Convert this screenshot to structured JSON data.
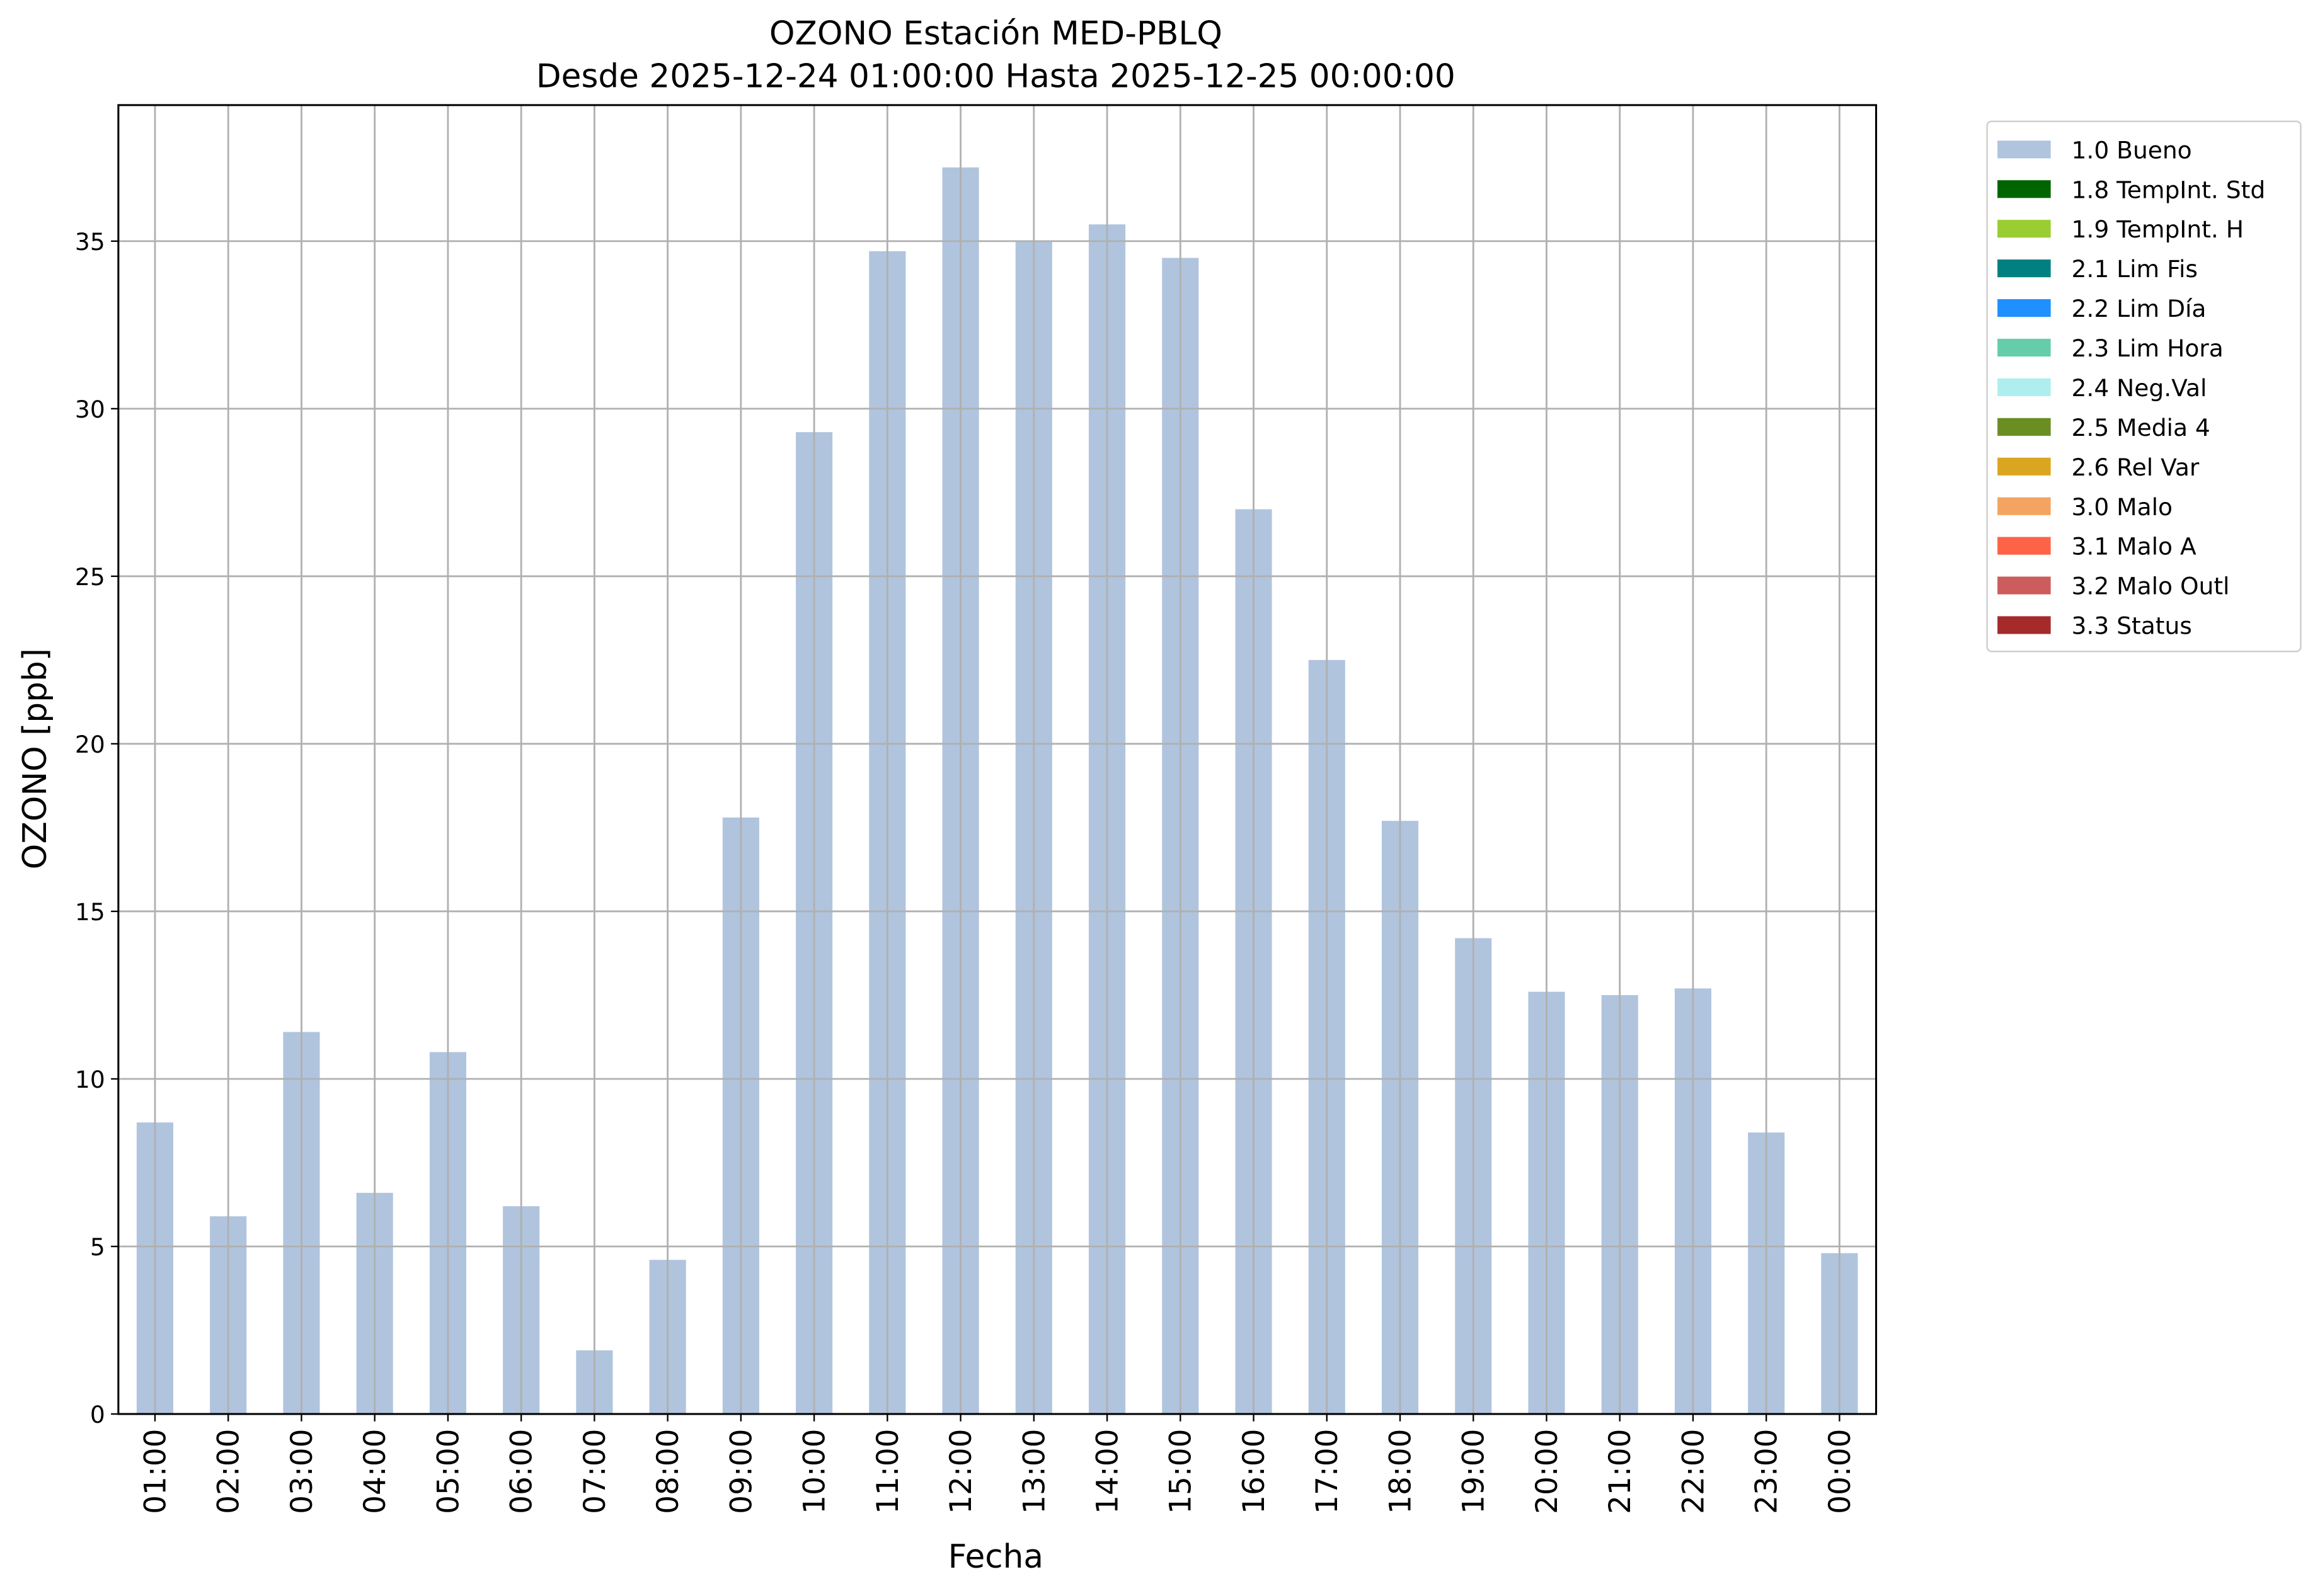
{
  "chart_data": {
    "type": "bar",
    "stacked": true,
    "title": "OZONO Estación MED-PBLQ",
    "subtitle": "Desde 2025-12-24 01:00:00 Hasta 2025-12-25 00:00:00",
    "x_label": "Fecha",
    "y_label": "OZONO [ppb]",
    "categories": [
      "01:00",
      "02:00",
      "03:00",
      "04:00",
      "05:00",
      "06:00",
      "07:00",
      "08:00",
      "09:00",
      "10:00",
      "11:00",
      "12:00",
      "13:00",
      "14:00",
      "15:00",
      "16:00",
      "17:00",
      "18:00",
      "19:00",
      "20:00",
      "21:00",
      "22:00",
      "23:00",
      "00:00"
    ],
    "series": [
      {
        "name": "1.0 Bueno",
        "color": "#b0c4de",
        "values": [
          8.7,
          5.9,
          11.4,
          6.6,
          10.8,
          6.2,
          1.9,
          4.6,
          17.8,
          29.3,
          34.7,
          37.2,
          35.0,
          35.5,
          34.5,
          27.0,
          22.5,
          17.7,
          14.2,
          12.6,
          12.5,
          12.7,
          8.4,
          4.8
        ]
      },
      {
        "name": "1.8 TempInt. Std",
        "color": "#006400",
        "values": [
          null,
          null,
          null,
          null,
          null,
          null,
          null,
          null,
          null,
          null,
          null,
          null,
          null,
          null,
          null,
          null,
          null,
          null,
          null,
          null,
          null,
          null,
          null,
          null
        ]
      },
      {
        "name": "1.9 TempInt. H",
        "color": "#9acd32",
        "values": [
          null,
          null,
          null,
          null,
          null,
          null,
          null,
          null,
          null,
          null,
          null,
          null,
          null,
          null,
          null,
          null,
          null,
          null,
          null,
          null,
          null,
          null,
          null,
          null
        ]
      },
      {
        "name": "2.1 Lim Fis",
        "color": "#008080",
        "values": [
          null,
          null,
          null,
          null,
          null,
          null,
          null,
          null,
          null,
          null,
          null,
          null,
          null,
          null,
          null,
          null,
          null,
          null,
          null,
          null,
          null,
          null,
          null,
          null
        ]
      },
      {
        "name": "2.2 Lim Día",
        "color": "#1e90ff",
        "values": [
          null,
          null,
          null,
          null,
          null,
          null,
          null,
          null,
          null,
          null,
          null,
          null,
          null,
          null,
          null,
          null,
          null,
          null,
          null,
          null,
          null,
          null,
          null,
          null
        ]
      },
      {
        "name": "2.3 Lim Hora",
        "color": "#66cdaa",
        "values": [
          null,
          null,
          null,
          null,
          null,
          null,
          null,
          null,
          null,
          null,
          null,
          null,
          null,
          null,
          null,
          null,
          null,
          null,
          null,
          null,
          null,
          null,
          null,
          null
        ]
      },
      {
        "name": "2.4 Neg.Val",
        "color": "#afeeee",
        "values": [
          null,
          null,
          null,
          null,
          null,
          null,
          null,
          null,
          null,
          null,
          null,
          null,
          null,
          null,
          null,
          null,
          null,
          null,
          null,
          null,
          null,
          null,
          null,
          null
        ]
      },
      {
        "name": "2.5 Media 4",
        "color": "#6b8e23",
        "values": [
          null,
          null,
          null,
          null,
          null,
          null,
          null,
          null,
          null,
          null,
          null,
          null,
          null,
          null,
          null,
          null,
          null,
          null,
          null,
          null,
          null,
          null,
          null,
          null
        ]
      },
      {
        "name": "2.6 Rel Var",
        "color": "#daa520",
        "values": [
          null,
          null,
          null,
          null,
          null,
          null,
          null,
          null,
          null,
          null,
          null,
          null,
          null,
          null,
          null,
          null,
          null,
          null,
          null,
          null,
          null,
          null,
          null,
          null
        ]
      },
      {
        "name": "3.0 Malo",
        "color": "#f4a460",
        "values": [
          null,
          null,
          null,
          null,
          null,
          null,
          null,
          null,
          null,
          null,
          null,
          null,
          null,
          null,
          null,
          null,
          null,
          null,
          null,
          null,
          null,
          null,
          null,
          null
        ]
      },
      {
        "name": "3.1 Malo A",
        "color": "#ff6347",
        "values": [
          null,
          null,
          null,
          null,
          null,
          null,
          null,
          null,
          null,
          null,
          null,
          null,
          null,
          null,
          null,
          null,
          null,
          null,
          null,
          null,
          null,
          null,
          null,
          null
        ]
      },
      {
        "name": "3.2 Malo Outl",
        "color": "#cd5c5c",
        "values": [
          null,
          null,
          null,
          null,
          null,
          null,
          null,
          null,
          null,
          null,
          null,
          null,
          null,
          null,
          null,
          null,
          null,
          null,
          null,
          null,
          null,
          null,
          null,
          null
        ]
      },
      {
        "name": "3.3 Status",
        "color": "#a52a2a",
        "values": [
          null,
          null,
          null,
          null,
          null,
          null,
          null,
          null,
          null,
          null,
          null,
          null,
          null,
          null,
          null,
          null,
          null,
          null,
          null,
          null,
          null,
          null,
          null,
          null
        ]
      }
    ],
    "ylim": [
      0,
      39.06
    ],
    "yticks": [
      0,
      5,
      10,
      15,
      20,
      25,
      30,
      35
    ],
    "grid": true,
    "legend_position": "outside-upper-right"
  }
}
